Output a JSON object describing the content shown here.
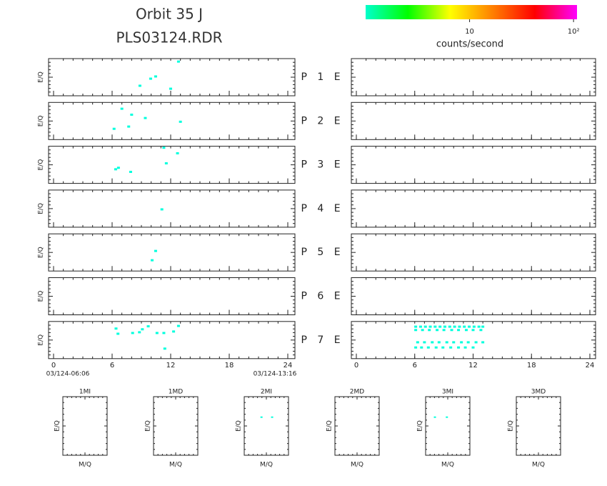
{
  "title": [
    "Orbit 35 J",
    "PLS03124.RDR"
  ],
  "colorbar": {
    "label": "counts/second",
    "lim": [
      1,
      108
    ],
    "log": true,
    "colors": [
      "#00ffcc",
      "#00ff00",
      "#ffff00",
      "#ff8000",
      "#ff0000",
      "#ff00ff"
    ],
    "ticks": [
      {
        "value": 10,
        "label": "10"
      },
      {
        "value": 100,
        "label": "10²"
      }
    ]
  },
  "ylabel": "E/Q",
  "xlim": [
    0,
    24
  ],
  "xticks": [
    0,
    6,
    12,
    18,
    24
  ],
  "start_label": "03/124-06:06",
  "end_label": "03/124-13:16",
  "point_color": "#00ffdd",
  "rows": [
    {
      "label": "P 1 E",
      "left": [
        [
          8.85,
          0.27
        ],
        [
          9.95,
          0.46
        ],
        [
          10.46,
          0.52
        ],
        [
          12.0,
          0.19
        ],
        [
          12.8,
          0.92
        ]
      ],
      "right": []
    },
    {
      "label": "P 2 E",
      "left": [
        [
          6.2,
          0.29
        ],
        [
          8.0,
          0.67
        ],
        [
          9.4,
          0.58
        ],
        [
          13.0,
          0.48
        ],
        [
          7.7,
          0.35
        ],
        [
          7.0,
          0.83
        ]
      ],
      "right": []
    },
    {
      "label": "P 3 E",
      "left": [
        [
          6.65,
          0.42
        ],
        [
          7.9,
          0.31
        ],
        [
          11.3,
          0.96
        ],
        [
          11.55,
          0.54
        ],
        [
          12.7,
          0.81
        ],
        [
          6.36,
          0.38
        ]
      ],
      "right": []
    },
    {
      "label": "P 4 E",
      "left": [
        [
          11.1,
          0.48
        ]
      ],
      "right": []
    },
    {
      "label": "P 5 E",
      "left": [
        [
          10.46,
          0.54
        ],
        [
          10.1,
          0.29
        ]
      ],
      "right": []
    },
    {
      "label": "P 6 E",
      "left": [],
      "right": []
    },
    {
      "label": "P 7 E",
      "left": [
        [
          6.4,
          0.81
        ],
        [
          8.1,
          0.69
        ],
        [
          9.1,
          0.79
        ],
        [
          9.7,
          0.87
        ],
        [
          11.3,
          0.69
        ],
        [
          12.3,
          0.73
        ],
        [
          12.8,
          0.88
        ],
        [
          11.4,
          0.27
        ],
        [
          6.6,
          0.67
        ],
        [
          8.8,
          0.71
        ],
        [
          10.6,
          0.69
        ]
      ],
      "right": [
        [
          6.1,
          0.86
        ],
        [
          6.6,
          0.86
        ],
        [
          7.1,
          0.86
        ],
        [
          7.6,
          0.86
        ],
        [
          8.1,
          0.86
        ],
        [
          8.6,
          0.86
        ],
        [
          9.1,
          0.86
        ],
        [
          9.6,
          0.86
        ],
        [
          10.1,
          0.86
        ],
        [
          10.6,
          0.86
        ],
        [
          11.1,
          0.86
        ],
        [
          11.6,
          0.86
        ],
        [
          12.1,
          0.86
        ],
        [
          12.6,
          0.86
        ],
        [
          13.0,
          0.86
        ],
        [
          6.1,
          0.77
        ],
        [
          6.8,
          0.77
        ],
        [
          7.5,
          0.77
        ],
        [
          8.3,
          0.77
        ],
        [
          9.0,
          0.77
        ],
        [
          9.8,
          0.77
        ],
        [
          10.5,
          0.77
        ],
        [
          11.3,
          0.77
        ],
        [
          12.0,
          0.77
        ],
        [
          12.8,
          0.77
        ],
        [
          6.3,
          0.44
        ],
        [
          7.0,
          0.44
        ],
        [
          7.8,
          0.44
        ],
        [
          8.5,
          0.44
        ],
        [
          9.3,
          0.44
        ],
        [
          10.0,
          0.44
        ],
        [
          10.8,
          0.44
        ],
        [
          11.5,
          0.44
        ],
        [
          12.3,
          0.44
        ],
        [
          13.0,
          0.44
        ],
        [
          6.1,
          0.3
        ],
        [
          6.7,
          0.3
        ],
        [
          7.4,
          0.3
        ],
        [
          8.2,
          0.3
        ],
        [
          8.9,
          0.3
        ],
        [
          9.7,
          0.3
        ],
        [
          10.5,
          0.3
        ],
        [
          11.2,
          0.3
        ],
        [
          12.0,
          0.3
        ]
      ]
    }
  ],
  "small": {
    "ylabel": "E/Q",
    "xlabel": "M/Q",
    "panels": [
      {
        "title": "1MI",
        "points": []
      },
      {
        "title": "1MD",
        "points": []
      },
      {
        "title": "2MI",
        "points": [
          [
            0.39,
            0.65
          ],
          [
            0.63,
            0.65
          ]
        ]
      },
      {
        "title": "2MD",
        "points": []
      },
      {
        "title": "3MI",
        "points": [
          [
            0.21,
            0.65
          ],
          [
            0.48,
            0.65
          ]
        ]
      },
      {
        "title": "3MD",
        "points": []
      }
    ]
  }
}
